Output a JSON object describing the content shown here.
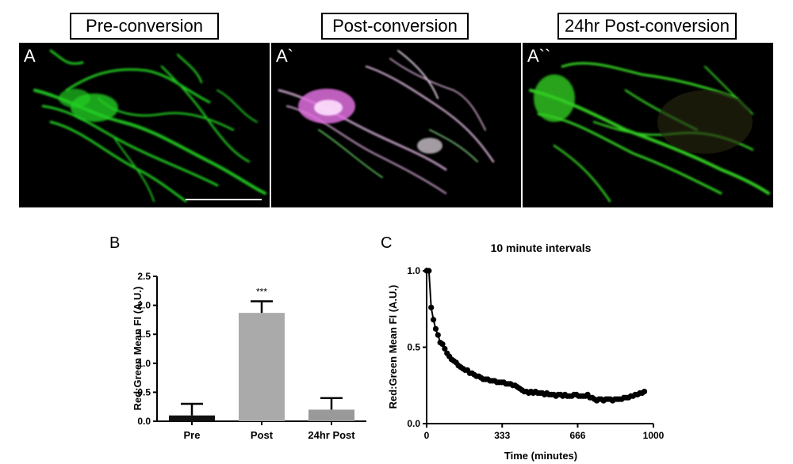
{
  "panels": [
    {
      "title": "Pre-conversion",
      "letter": "A"
    },
    {
      "title": "Post-conversion",
      "letter": "A`"
    },
    {
      "title": "24hr Post-conversion",
      "letter": "A``"
    }
  ],
  "colors": {
    "green": "#22cc22",
    "magenta": "#e060e0",
    "bar_dark": "#111111",
    "bar_gray": "#aaaaaa",
    "bar_midgray": "#999999"
  },
  "chart_data": [
    {
      "type": "bar",
      "panel_letter": "B",
      "title": "",
      "xlabel": "",
      "ylabel": "Red:Green  Mean FI (A.U.)",
      "categories": [
        "Pre",
        "Post",
        "24hr Post"
      ],
      "values": [
        0.1,
        1.87,
        0.2
      ],
      "errors": [
        0.2,
        0.2,
        0.2
      ],
      "bar_colors": [
        "#111111",
        "#aaaaaa",
        "#999999"
      ],
      "significance": [
        "",
        "***",
        ""
      ],
      "ylim": [
        0,
        2.5
      ],
      "yticks": [
        "0.0",
        "0.5",
        "1.0",
        "1.5",
        "2.0",
        "2.5"
      ],
      "ytick_values": [
        0,
        0.5,
        1.0,
        1.5,
        2.0,
        2.5
      ],
      "grid": false
    },
    {
      "type": "line",
      "panel_letter": "C",
      "title": "10 minute intervals",
      "xlabel": "Time (minutes)",
      "ylabel": "Red:Green Mean FI (A.U.)",
      "xlim": [
        0,
        1000
      ],
      "ylim": [
        0,
        1.0
      ],
      "xticks": [
        "0",
        "333",
        "666",
        "1000"
      ],
      "xtick_values": [
        0,
        333,
        666,
        1000
      ],
      "yticks": [
        "0.0",
        "0.5",
        "1.0"
      ],
      "ytick_values": [
        0,
        0.5,
        1.0
      ],
      "grid": false,
      "series": [
        {
          "x": [
            0,
            10,
            20,
            30,
            40,
            50,
            60,
            70,
            80,
            90,
            100,
            110,
            120,
            130,
            140,
            150,
            160,
            170,
            180,
            190,
            200,
            210,
            220,
            230,
            240,
            250,
            260,
            270,
            280,
            290,
            300,
            310,
            320,
            330,
            340,
            350,
            360,
            370,
            380,
            390,
            400,
            410,
            420,
            430,
            440,
            450,
            460,
            470,
            480,
            490,
            500,
            510,
            520,
            530,
            540,
            550,
            560,
            570,
            580,
            590,
            600,
            610,
            620,
            630,
            640,
            650,
            660,
            670,
            680,
            690,
            700,
            710,
            720,
            730,
            740,
            750,
            760,
            770,
            780,
            790,
            800,
            810,
            820,
            830,
            840,
            850,
            860,
            870,
            880,
            890,
            900,
            910,
            920,
            930,
            940,
            950,
            960
          ],
          "y": [
            1.0,
            1.0,
            0.76,
            0.68,
            0.62,
            0.58,
            0.53,
            0.52,
            0.49,
            0.46,
            0.44,
            0.42,
            0.41,
            0.4,
            0.38,
            0.37,
            0.36,
            0.35,
            0.35,
            0.33,
            0.33,
            0.32,
            0.31,
            0.31,
            0.3,
            0.29,
            0.29,
            0.29,
            0.28,
            0.28,
            0.28,
            0.27,
            0.27,
            0.27,
            0.27,
            0.26,
            0.26,
            0.26,
            0.25,
            0.25,
            0.24,
            0.23,
            0.22,
            0.21,
            0.21,
            0.2,
            0.21,
            0.2,
            0.21,
            0.2,
            0.2,
            0.2,
            0.19,
            0.2,
            0.19,
            0.19,
            0.19,
            0.18,
            0.19,
            0.19,
            0.18,
            0.19,
            0.18,
            0.18,
            0.18,
            0.19,
            0.19,
            0.18,
            0.18,
            0.18,
            0.18,
            0.19,
            0.17,
            0.17,
            0.16,
            0.15,
            0.16,
            0.16,
            0.15,
            0.16,
            0.16,
            0.16,
            0.15,
            0.16,
            0.16,
            0.16,
            0.16,
            0.17,
            0.17,
            0.17,
            0.18,
            0.18,
            0.19,
            0.19,
            0.2,
            0.2,
            0.21
          ]
        }
      ]
    }
  ]
}
